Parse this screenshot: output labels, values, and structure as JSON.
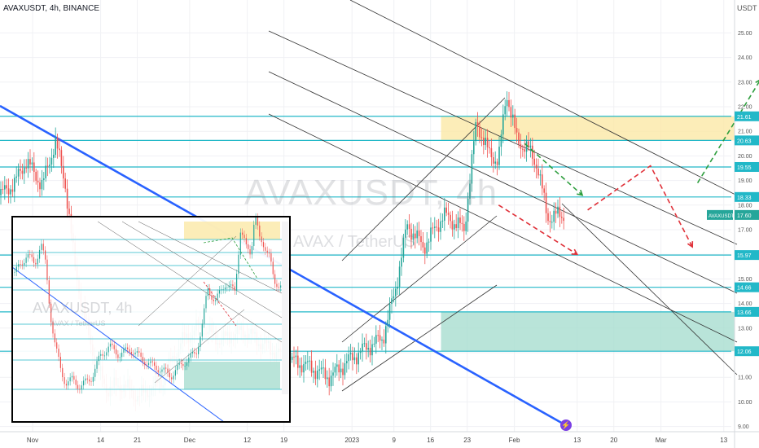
{
  "header": {
    "title": "AVAXUSDT, 4h, BINANCE",
    "unit": "USDT"
  },
  "watermark": {
    "symbol": "AVAXUSDT, 4h",
    "pair": "AVAX / TetherUS"
  },
  "inset_watermark": {
    "symbol": "AVAXUSDT, 4h",
    "pair": "AVAX / TetherUS"
  },
  "icons": {
    "alert": "flash-icon"
  },
  "colors": {
    "hline": "#22b8c8",
    "trendline": "#2962ff",
    "up_candle": "#26a69a",
    "down_candle": "#ef5350",
    "supply_zone": "#fbe9a6",
    "demand_zone": "#a8ddd0",
    "bull_path": "#2e9e3e",
    "bear_path": "#e0323a",
    "price_tag": "#26a69a"
  },
  "chart_data": {
    "type": "candlestick",
    "title": "AVAXUSDT, 4h, BINANCE",
    "y_axis": {
      "ticks": [
        "25.00",
        "24.00",
        "23.00",
        "22.00",
        "21.00",
        "20.00",
        "19.00",
        "18.00",
        "17.00",
        "16.00",
        "15.00",
        "14.00",
        "13.00",
        "12.00",
        "11.00",
        "10.00",
        "9.00"
      ],
      "range": [
        8.9,
        26.0
      ]
    },
    "x_axis": {
      "ticks": [
        "Nov",
        "14",
        "21",
        "Dec",
        "12",
        "19",
        "2023",
        "9",
        "16",
        "23",
        "Feb",
        "13",
        "20",
        "Mar",
        "13"
      ]
    },
    "levels": [
      "21.61",
      "20.63",
      "19.55",
      "18.33",
      "15.97",
      "14.66",
      "13.66",
      "12.06"
    ],
    "last_price": {
      "symbol": "AVAXUSDT",
      "value": "17.60"
    },
    "zones": [
      {
        "kind": "supply",
        "from_date": "2023-01-18",
        "to_date": "2023-03-15",
        "low": 20.63,
        "high": 21.61
      },
      {
        "kind": "demand",
        "from_date": "2023-01-18",
        "to_date": "2023-03-15",
        "low": 12.06,
        "high": 13.66
      }
    ],
    "projections": [
      {
        "kind": "bull",
        "points": [
          [
            "2023-02-03",
            20.5
          ],
          [
            "2023-02-14",
            18.4
          ]
        ]
      },
      {
        "kind": "bear",
        "points": [
          [
            "2023-01-29",
            18.0
          ],
          [
            "2023-02-13",
            16.0
          ]
        ]
      },
      {
        "kind": "bear",
        "points": [
          [
            "2023-02-15",
            17.8
          ],
          [
            "2023-02-27",
            19.6
          ],
          [
            "2023-03-07",
            16.3
          ]
        ]
      },
      {
        "kind": "bull",
        "points": [
          [
            "2023-03-08",
            18.9
          ],
          [
            "2023-03-20",
            23.1
          ]
        ]
      }
    ]
  }
}
